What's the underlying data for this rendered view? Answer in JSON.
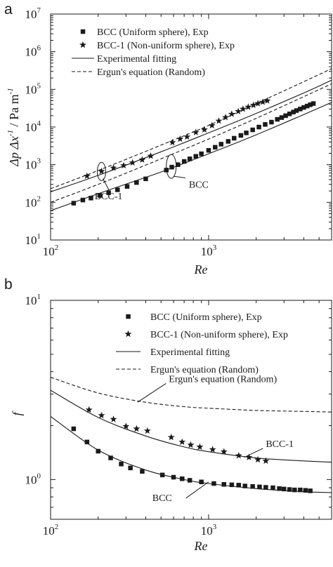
{
  "chart_data": [
    {
      "panel_label": "a",
      "type": "scatter",
      "x_scale": "log",
      "y_scale": "log",
      "xlabel_text": "Re",
      "ylabel_parts": [
        "Δp Δx",
        "-1",
        " / Pa m",
        "-1"
      ],
      "xlim": [
        100,
        6000
      ],
      "ylim": [
        10,
        10000000
      ],
      "x_ticks": [
        {
          "base": "10",
          "exp": "2",
          "value": 100
        },
        {
          "base": "10",
          "exp": "3",
          "value": 1000
        }
      ],
      "y_ticks": [
        {
          "base": "10",
          "exp": "1",
          "value": 10
        },
        {
          "base": "10",
          "exp": "2",
          "value": 100
        },
        {
          "base": "10",
          "exp": "3",
          "value": 1000
        },
        {
          "base": "10",
          "exp": "4",
          "value": 10000
        },
        {
          "base": "10",
          "exp": "5",
          "value": 100000
        },
        {
          "base": "10",
          "exp": "6",
          "value": 1000000
        },
        {
          "base": "10",
          "exp": "7",
          "value": 10000000
        }
      ],
      "legend_placement": "top-left",
      "series": [
        {
          "name": "BCC (Uniform sphere), Exp",
          "kind": "markers",
          "marker": "square",
          "points": [
            [
              140,
              95
            ],
            [
              160,
              115
            ],
            [
              180,
              130
            ],
            [
              205,
              152
            ],
            [
              233,
              180
            ],
            [
              265,
              215
            ],
            [
              305,
              265
            ],
            [
              350,
              335
            ],
            [
              400,
              420
            ],
            [
              540,
              720
            ],
            [
              585,
              860
            ],
            [
              640,
              1000
            ],
            [
              700,
              1220
            ],
            [
              760,
              1430
            ],
            [
              830,
              1670
            ],
            [
              900,
              1950
            ],
            [
              1000,
              2400
            ],
            [
              1100,
              2900
            ],
            [
              1200,
              3500
            ],
            [
              1330,
              4150
            ],
            [
              1450,
              5050
            ],
            [
              1600,
              6000
            ],
            [
              1730,
              7000
            ],
            [
              1900,
              8400
            ],
            [
              2080,
              10000
            ],
            [
              2280,
              11700
            ],
            [
              2500,
              13500
            ],
            [
              2720,
              16000
            ],
            [
              2900,
              17800
            ],
            [
              3070,
              20000
            ],
            [
              3250,
              22400
            ],
            [
              3440,
              25000
            ],
            [
              3600,
              27300
            ],
            [
              3800,
              30000
            ],
            [
              4000,
              33000
            ],
            [
              4200,
              36000
            ],
            [
              4400,
              39000
            ],
            [
              4600,
              42000
            ]
          ]
        },
        {
          "name": "BCC-1 (Non-uniform sphere), Exp",
          "kind": "markers",
          "marker": "star",
          "points": [
            [
              170,
              500
            ],
            [
              210,
              670
            ],
            [
              250,
              820
            ],
            [
              290,
              950
            ],
            [
              330,
              1130
            ],
            [
              380,
              1350
            ],
            [
              430,
              1700
            ],
            [
              590,
              3900
            ],
            [
              660,
              4800
            ],
            [
              730,
              5500
            ],
            [
              830,
              7200
            ],
            [
              940,
              8500
            ],
            [
              1050,
              11000
            ],
            [
              1160,
              14500
            ],
            [
              1280,
              18000
            ],
            [
              1400,
              22000
            ],
            [
              1540,
              26000
            ],
            [
              1650,
              30000
            ],
            [
              1780,
              34000
            ],
            [
              1920,
              38000
            ],
            [
              2050,
              42000
            ],
            [
              2200,
              46000
            ],
            [
              2350,
              50000
            ]
          ]
        },
        {
          "name": "Experimental fitting",
          "kind": "line",
          "style": "solid",
          "points": [
            [
              100,
              60
            ],
            [
              200,
              170
            ],
            [
              500,
              640
            ],
            [
              1000,
              1950
            ],
            [
              2000,
              6200
            ],
            [
              4000,
              21500
            ],
            [
              6000,
              45000
            ]
          ]
        },
        {
          "name": "Experimental fitting",
          "kind": "line",
          "style": "solid",
          "points": [
            [
              100,
              190
            ],
            [
              200,
              520
            ],
            [
              500,
              2200
            ],
            [
              1000,
              7000
            ],
            [
              2000,
              23000
            ],
            [
              4000,
              80000
            ],
            [
              6000,
              175000
            ]
          ]
        },
        {
          "name": "Ergun's equation (Random)",
          "kind": "line",
          "style": "dashed",
          "points": [
            [
              100,
              100
            ],
            [
              200,
              300
            ],
            [
              500,
              1430
            ],
            [
              1000,
              4800
            ],
            [
              2000,
              17000
            ],
            [
              4000,
              64000
            ],
            [
              6000,
              140000
            ]
          ]
        },
        {
          "name": "Ergun's equation (Random)",
          "kind": "line",
          "style": "dashed",
          "points": [
            [
              100,
              230
            ],
            [
              200,
              700
            ],
            [
              500,
              3300
            ],
            [
              1000,
              11000
            ],
            [
              2000,
              42000
            ],
            [
              4000,
              160000
            ],
            [
              6000,
              355000
            ]
          ]
        }
      ],
      "annotations": [
        {
          "text": "BCC-1",
          "at": [
            210,
            660
          ],
          "label_at": [
            190,
            120
          ]
        },
        {
          "text": "BCC",
          "at": [
            580,
            900
          ],
          "label_at": [
            750,
            245
          ]
        }
      ]
    },
    {
      "panel_label": "b",
      "type": "scatter",
      "x_scale": "log",
      "y_scale": "log",
      "xlabel_text": "Re",
      "ylabel_text": "f",
      "xlim": [
        100,
        6000
      ],
      "ylim": [
        0.6,
        10
      ],
      "x_ticks": [
        {
          "base": "10",
          "exp": "2",
          "value": 100
        },
        {
          "base": "10",
          "exp": "3",
          "value": 1000
        }
      ],
      "y_ticks": [
        {
          "base": "10",
          "exp": "0",
          "value": 1
        },
        {
          "base": "10",
          "exp": "1",
          "value": 10
        }
      ],
      "legend_placement": "top-right",
      "series": [
        {
          "name": "BCC (Uniform sphere), Exp",
          "kind": "markers",
          "marker": "square",
          "points": [
            [
              140,
              1.92
            ],
            [
              170,
              1.62
            ],
            [
              200,
              1.44
            ],
            [
              240,
              1.32
            ],
            [
              280,
              1.22
            ],
            [
              320,
              1.16
            ],
            [
              380,
              1.11
            ],
            [
              510,
              1.06
            ],
            [
              600,
              1.03
            ],
            [
              680,
              1.01
            ],
            [
              760,
              0.99
            ],
            [
              900,
              0.97
            ],
            [
              1080,
              0.95
            ],
            [
              1250,
              0.94
            ],
            [
              1400,
              0.935
            ],
            [
              1550,
              0.93
            ],
            [
              1700,
              0.92
            ],
            [
              1900,
              0.915
            ],
            [
              2100,
              0.91
            ],
            [
              2300,
              0.905
            ],
            [
              2550,
              0.9
            ],
            [
              2800,
              0.89
            ],
            [
              3000,
              0.885
            ],
            [
              3250,
              0.88
            ],
            [
              3500,
              0.875
            ],
            [
              3800,
              0.875
            ],
            [
              4100,
              0.87
            ],
            [
              4400,
              0.865
            ]
          ]
        },
        {
          "name": "BCC-1 (Non-uniform sphere), Exp",
          "kind": "markers",
          "marker": "star",
          "points": [
            [
              175,
              2.45
            ],
            [
              210,
              2.28
            ],
            [
              250,
              2.17
            ],
            [
              300,
              1.98
            ],
            [
              350,
              1.92
            ],
            [
              410,
              1.87
            ],
            [
              580,
              1.72
            ],
            [
              680,
              1.62
            ],
            [
              770,
              1.56
            ],
            [
              880,
              1.52
            ],
            [
              1060,
              1.47
            ],
            [
              1250,
              1.43
            ],
            [
              1550,
              1.36
            ],
            [
              1800,
              1.33
            ],
            [
              2050,
              1.29
            ],
            [
              2300,
              1.27
            ]
          ]
        },
        {
          "name": "Experimental fitting",
          "kind": "line",
          "style": "solid",
          "points": [
            [
              100,
              3.15
            ],
            [
              200,
              2.22
            ],
            [
              400,
              1.75
            ],
            [
              700,
              1.52
            ],
            [
              1000,
              1.43
            ],
            [
              2000,
              1.32
            ],
            [
              4000,
              1.27
            ],
            [
              6000,
              1.25
            ]
          ]
        },
        {
          "name": "Experimental fitting",
          "kind": "line",
          "style": "solid",
          "points": [
            [
              100,
              2.25
            ],
            [
              200,
              1.46
            ],
            [
              400,
              1.13
            ],
            [
              700,
              1.0
            ],
            [
              1000,
              0.95
            ],
            [
              2000,
              0.89
            ],
            [
              4000,
              0.855
            ],
            [
              6000,
              0.845
            ]
          ]
        },
        {
          "name": "Ergun's equation (Random)",
          "kind": "line",
          "style": "dashed",
          "points": [
            [
              100,
              3.72
            ],
            [
              200,
              3.04
            ],
            [
              400,
              2.7
            ],
            [
              700,
              2.55
            ],
            [
              1000,
              2.5
            ],
            [
              2000,
              2.43
            ],
            [
              4000,
              2.4
            ],
            [
              6000,
              2.38
            ]
          ]
        }
      ],
      "annotations": [
        {
          "text": "Ergun's equation (Random)",
          "at": [
            355,
            2.7
          ],
          "label_at": [
            560,
            3.5
          ]
        },
        {
          "text": "BCC-1",
          "at": [
            1680,
            1.33
          ],
          "label_at": [
            2300,
            1.52
          ]
        },
        {
          "text": "BCC",
          "at": [
            1000,
            0.97
          ],
          "label_at": [
            440,
            0.76
          ]
        }
      ]
    }
  ]
}
